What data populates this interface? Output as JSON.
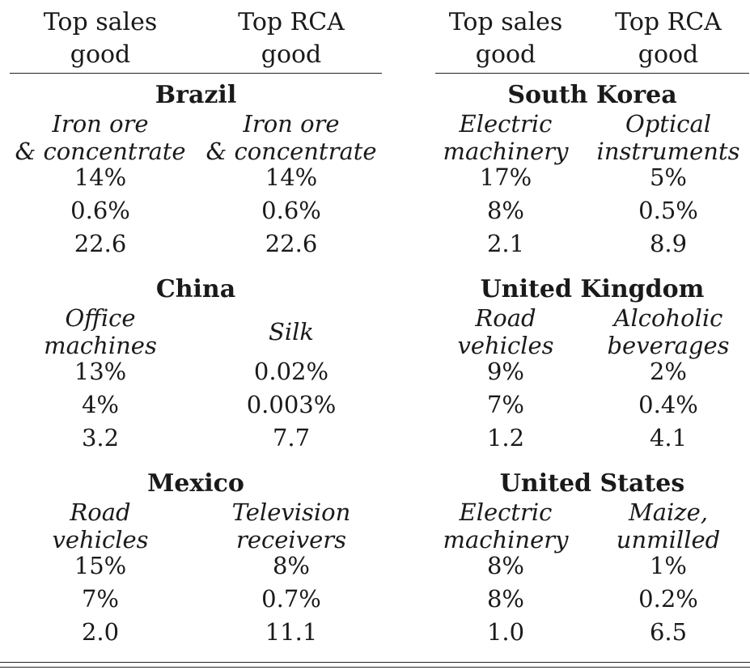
{
  "headers": {
    "left": {
      "col1": "Top sales\ngood",
      "col2": "Top RCA\ngood"
    },
    "right": {
      "col1": "Top sales\ngood",
      "col2": "Top RCA\ngood"
    }
  },
  "panels": {
    "left": [
      {
        "country": "Brazil",
        "good1": "Iron ore\n& concentrate",
        "good2": "Iron ore\n& concentrate",
        "rows": [
          [
            "14%",
            "14%"
          ],
          [
            "0.6%",
            "0.6%"
          ],
          [
            "22.6",
            "22.6"
          ]
        ]
      },
      {
        "country": "China",
        "good1": "Office\nmachines",
        "good2": "Silk",
        "rows": [
          [
            "13%",
            "0.02%"
          ],
          [
            "4%",
            "0.003%"
          ],
          [
            "3.2",
            "7.7"
          ]
        ]
      },
      {
        "country": "Mexico",
        "good1": "Road\nvehicles",
        "good2": "Television\nreceivers",
        "rows": [
          [
            "15%",
            "8%"
          ],
          [
            "7%",
            "0.7%"
          ],
          [
            "2.0",
            "11.1"
          ]
        ]
      }
    ],
    "right": [
      {
        "country": "South Korea",
        "good1": "Electric\nmachinery",
        "good2": "Optical\ninstruments",
        "rows": [
          [
            "17%",
            "5%"
          ],
          [
            "8%",
            "0.5%"
          ],
          [
            "2.1",
            "8.9"
          ]
        ]
      },
      {
        "country": "United Kingdom",
        "good1": "Road\nvehicles",
        "good2": "Alcoholic\nbeverages",
        "rows": [
          [
            "9%",
            "2%"
          ],
          [
            "7%",
            "0.4%"
          ],
          [
            "1.2",
            "4.1"
          ]
        ]
      },
      {
        "country": "United States",
        "good1": "Electric\nmachinery",
        "good2": "Maize,\nunmilled",
        "rows": [
          [
            "8%",
            "1%"
          ],
          [
            "8%",
            "0.2%"
          ],
          [
            "1.0",
            "6.5"
          ]
        ]
      }
    ]
  }
}
